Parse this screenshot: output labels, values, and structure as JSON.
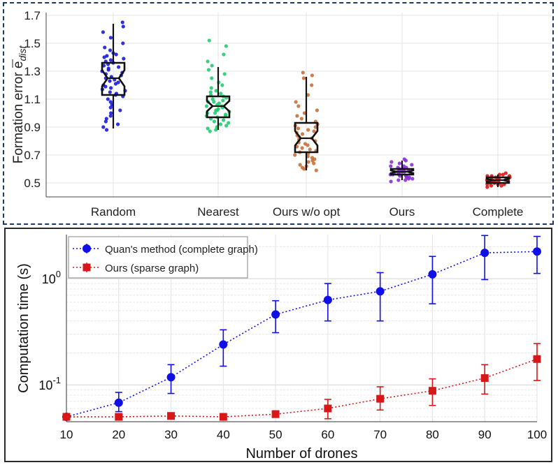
{
  "chart_data": [
    {
      "type": "boxplot",
      "ylabel": "Formation error e",
      "ylabel_subscript": "dist",
      "ylim": [
        0.4,
        1.72
      ],
      "yticks": [
        0.5,
        0.7,
        0.9,
        1.1,
        1.3,
        1.5,
        1.7
      ],
      "categories": [
        "Random",
        "Nearest",
        "Ours w/o opt",
        "Ours",
        "Complete"
      ],
      "grid": true,
      "boxes": [
        {
          "name": "Random",
          "color": "#1a1adc",
          "min": 0.89,
          "q1": 1.13,
          "median": 1.25,
          "q3": 1.36,
          "max": 1.64,
          "points": [
            1.65,
            1.62,
            1.58,
            1.54,
            1.5,
            1.47,
            1.45,
            1.43,
            1.42,
            1.41,
            1.4,
            1.39,
            1.38,
            1.37,
            1.36,
            1.35,
            1.34,
            1.33,
            1.32,
            1.31,
            1.3,
            1.29,
            1.28,
            1.27,
            1.26,
            1.25,
            1.24,
            1.23,
            1.22,
            1.21,
            1.2,
            1.19,
            1.18,
            1.17,
            1.16,
            1.15,
            1.14,
            1.13,
            1.12,
            1.1,
            1.08,
            1.06,
            1.04,
            1.02,
            1.0,
            0.98,
            0.96,
            0.94,
            0.92,
            0.9,
            0.88
          ]
        },
        {
          "name": "Nearest",
          "color": "#22cc70",
          "min": 0.88,
          "q1": 0.97,
          "median": 1.05,
          "q3": 1.12,
          "max": 1.33,
          "points": [
            1.52,
            1.48,
            1.42,
            1.37,
            1.34,
            1.31,
            1.28,
            1.25,
            1.22,
            1.2,
            1.18,
            1.16,
            1.15,
            1.14,
            1.13,
            1.12,
            1.11,
            1.1,
            1.09,
            1.08,
            1.08,
            1.07,
            1.06,
            1.05,
            1.05,
            1.04,
            1.03,
            1.02,
            1.02,
            1.01,
            1.0,
            1.0,
            0.99,
            0.98,
            0.98,
            0.97,
            0.96,
            0.95,
            0.94,
            0.93,
            0.92,
            0.91,
            0.9,
            0.89,
            0.88,
            0.87
          ]
        },
        {
          "name": "Ours w/o opt",
          "color": "#c8703a",
          "min": 0.59,
          "q1": 0.72,
          "median": 0.82,
          "q3": 0.93,
          "max": 1.26,
          "points": [
            1.29,
            1.27,
            1.25,
            1.2,
            1.13,
            1.08,
            1.05,
            1.02,
            1.0,
            0.98,
            0.96,
            0.94,
            0.92,
            0.91,
            0.9,
            0.89,
            0.88,
            0.87,
            0.86,
            0.85,
            0.84,
            0.83,
            0.82,
            0.81,
            0.8,
            0.79,
            0.78,
            0.77,
            0.76,
            0.75,
            0.74,
            0.73,
            0.72,
            0.71,
            0.7,
            0.69,
            0.68,
            0.67,
            0.66,
            0.65,
            0.64,
            0.63,
            0.62,
            0.61,
            0.6,
            0.59
          ]
        },
        {
          "name": "Ours",
          "color": "#8b30d8",
          "min": 0.52,
          "q1": 0.56,
          "median": 0.58,
          "q3": 0.6,
          "max": 0.66,
          "points": [
            0.67,
            0.66,
            0.65,
            0.64,
            0.63,
            0.62,
            0.62,
            0.61,
            0.61,
            0.6,
            0.6,
            0.6,
            0.59,
            0.59,
            0.59,
            0.58,
            0.58,
            0.58,
            0.58,
            0.57,
            0.57,
            0.57,
            0.56,
            0.56,
            0.56,
            0.55,
            0.55,
            0.55,
            0.54,
            0.54,
            0.53,
            0.53,
            0.52,
            0.52,
            0.51
          ]
        },
        {
          "name": "Complete",
          "color": "#d81818",
          "min": 0.47,
          "q1": 0.5,
          "median": 0.52,
          "q3": 0.54,
          "max": 0.56,
          "points": [
            0.57,
            0.56,
            0.56,
            0.55,
            0.55,
            0.55,
            0.54,
            0.54,
            0.54,
            0.54,
            0.53,
            0.53,
            0.53,
            0.53,
            0.52,
            0.52,
            0.52,
            0.52,
            0.52,
            0.51,
            0.51,
            0.51,
            0.51,
            0.5,
            0.5,
            0.5,
            0.5,
            0.49,
            0.49,
            0.49,
            0.48,
            0.48,
            0.47
          ]
        }
      ]
    },
    {
      "type": "line",
      "scale_y": "log",
      "xlabel": "Number of drones",
      "ylabel": "Computation time (s)",
      "x": [
        10,
        20,
        30,
        40,
        50,
        60,
        70,
        80,
        90,
        100
      ],
      "xlim": [
        10,
        100
      ],
      "ylim": [
        0.045,
        2.6
      ],
      "yticks": [
        {
          "value": 0.1,
          "base": "10",
          "exp": "-1"
        },
        {
          "value": 1,
          "base": "10",
          "exp": "0"
        }
      ],
      "grid": true,
      "legend_position": "top-left",
      "series": [
        {
          "name": "Quan's method (complete graph)",
          "color": "#1010e6",
          "marker": "circle",
          "values": [
            0.05,
            0.068,
            0.118,
            0.24,
            0.46,
            0.63,
            0.76,
            1.1,
            1.75,
            1.8
          ],
          "err_low": [
            0.05,
            0.056,
            0.083,
            0.15,
            0.31,
            0.4,
            0.4,
            0.58,
            0.98,
            1.12
          ],
          "err_high": [
            0.05,
            0.085,
            0.155,
            0.33,
            0.62,
            0.9,
            1.14,
            1.62,
            2.55,
            2.5
          ]
        },
        {
          "name": "Ours (sparse graph)",
          "color": "#d81818",
          "marker": "square",
          "values": [
            0.05,
            0.05,
            0.051,
            0.05,
            0.053,
            0.06,
            0.074,
            0.088,
            0.116,
            0.175
          ],
          "err_low": [
            0.05,
            0.05,
            0.05,
            0.05,
            0.05,
            0.048,
            0.058,
            0.064,
            0.082,
            0.11
          ],
          "err_high": [
            0.05,
            0.05,
            0.052,
            0.05,
            0.057,
            0.073,
            0.096,
            0.114,
            0.155,
            0.245
          ]
        }
      ]
    }
  ]
}
